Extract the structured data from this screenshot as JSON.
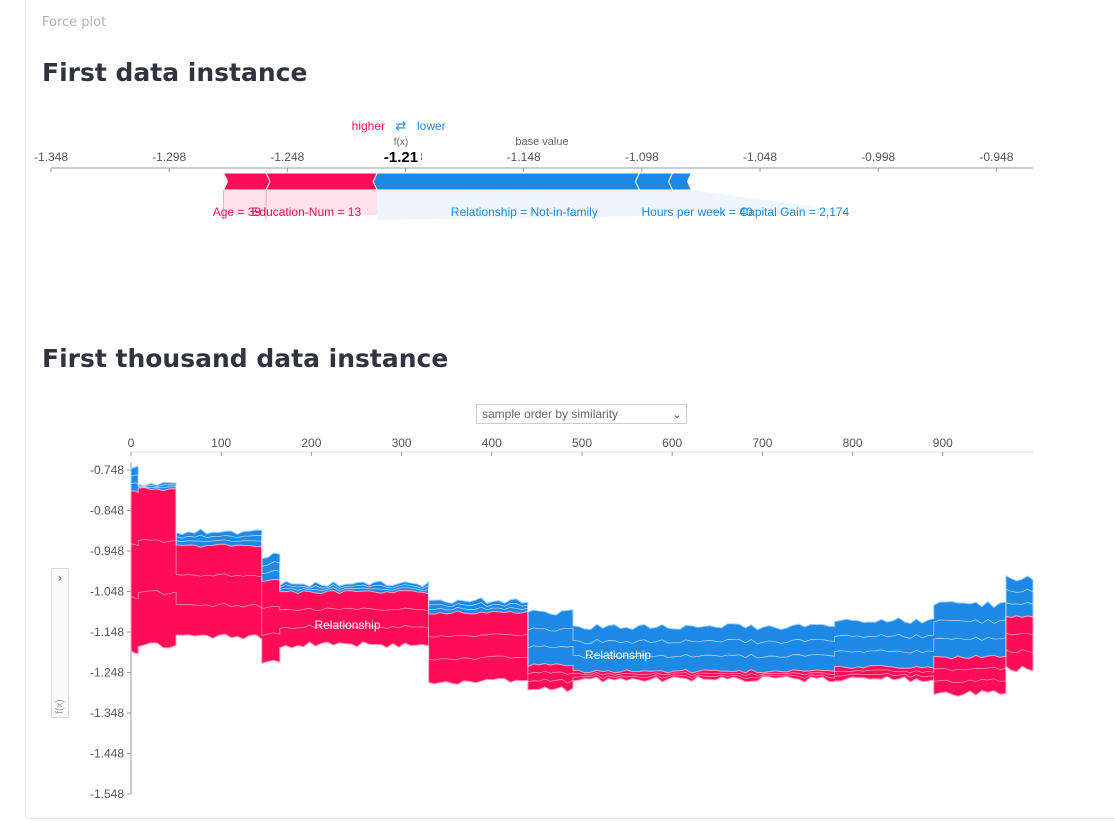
{
  "page": {
    "tab_label": "Force plot",
    "section1_title": "First data instance",
    "section2_title": "First thousand data instance"
  },
  "colors": {
    "positive": "#ff0d57",
    "negative": "#1e88e5",
    "axis": "#999999"
  },
  "chart_data": [
    {
      "type": "force",
      "legend": {
        "higher": "higher",
        "lower": "lower",
        "arrow": "⇄"
      },
      "fx_label": "f(x)",
      "fx_value": -1.21,
      "fx_text": "-1.21",
      "base_label": "base value",
      "base_value": -1.13,
      "axis": {
        "ticks": [
          -1.348,
          -1.298,
          -1.248,
          -1.198,
          -1.148,
          -1.098,
          -1.048,
          -0.998,
          -0.948
        ],
        "tick_labels": [
          "-1.348",
          "-1.298",
          "-1.248",
          "-1.198",
          "-1.148",
          "-1.098",
          "-1.048",
          "-0.998",
          "-0.948"
        ],
        "range": [
          -1.348,
          -0.9325
        ]
      },
      "positive_features": [
        {
          "label": "Age = 39",
          "from": -1.275,
          "to": -1.257
        },
        {
          "label": "Education-Num = 13",
          "from": -1.257,
          "to": -1.21
        }
      ],
      "negative_features": [
        {
          "label": "Relationship = Not-in-family",
          "from": -1.21,
          "to": -1.099
        },
        {
          "label": "Hours per week = 40",
          "from": -1.099,
          "to": -1.085
        },
        {
          "label": "Capital Gain = 2,174",
          "from": -1.085,
          "to": -1.077
        }
      ]
    },
    {
      "type": "area",
      "dropdown": {
        "text": "sample order by similarity",
        "chevron": "⌄"
      },
      "y_axis_label": "f(x)",
      "x": {
        "ticks": [
          0,
          100,
          200,
          300,
          400,
          500,
          600,
          700,
          800,
          900
        ],
        "tick_labels": [
          "0",
          "100",
          "200",
          "300",
          "400",
          "500",
          "600",
          "700",
          "800",
          "900"
        ],
        "range": [
          0,
          1000
        ]
      },
      "y": {
        "ticks": [
          -0.748,
          -0.848,
          -0.948,
          -1.048,
          -1.148,
          -1.248,
          -1.348,
          -1.448,
          -1.548
        ],
        "tick_labels": [
          "-0.748",
          "-0.848",
          "-0.948",
          "-1.048",
          "-1.148",
          "-1.248",
          "-1.348",
          "-1.448",
          "-1.548"
        ],
        "range": [
          -1.548,
          -0.7
        ]
      },
      "annotations": [
        {
          "text": "Relationship",
          "x": 240,
          "y": -1.14
        },
        {
          "text": "Relationship",
          "x": 540,
          "y": -1.215
        }
      ],
      "segments": [
        {
          "x": [
            0,
            8
          ],
          "top": -0.745,
          "fx": -0.8,
          "bottom": -1.2
        },
        {
          "x": [
            8,
            50
          ],
          "top": -0.785,
          "fx": -0.795,
          "bottom": -1.18
        },
        {
          "x": [
            50,
            145
          ],
          "top": -0.9,
          "fx": -0.935,
          "bottom": -1.16
        },
        {
          "x": [
            145,
            165
          ],
          "top": -0.96,
          "fx": -1.02,
          "bottom": -1.22
        },
        {
          "x": [
            165,
            330
          ],
          "top": -1.03,
          "fx": -1.05,
          "bottom": -1.18
        },
        {
          "x": [
            330,
            440
          ],
          "top": -1.07,
          "fx": -1.1,
          "bottom": -1.27
        },
        {
          "x": [
            440,
            490
          ],
          "top": -1.1,
          "fx": -1.23,
          "bottom": -1.29
        },
        {
          "x": [
            490,
            780
          ],
          "top": -1.135,
          "fx": -1.245,
          "bottom": -1.265
        },
        {
          "x": [
            780,
            890
          ],
          "top": -1.12,
          "fx": -1.235,
          "bottom": -1.265
        },
        {
          "x": [
            890,
            970
          ],
          "top": -1.08,
          "fx": -1.21,
          "bottom": -1.3
        },
        {
          "x": [
            970,
            1000
          ],
          "top": -1.015,
          "fx": -1.11,
          "bottom": -1.24
        }
      ]
    }
  ]
}
